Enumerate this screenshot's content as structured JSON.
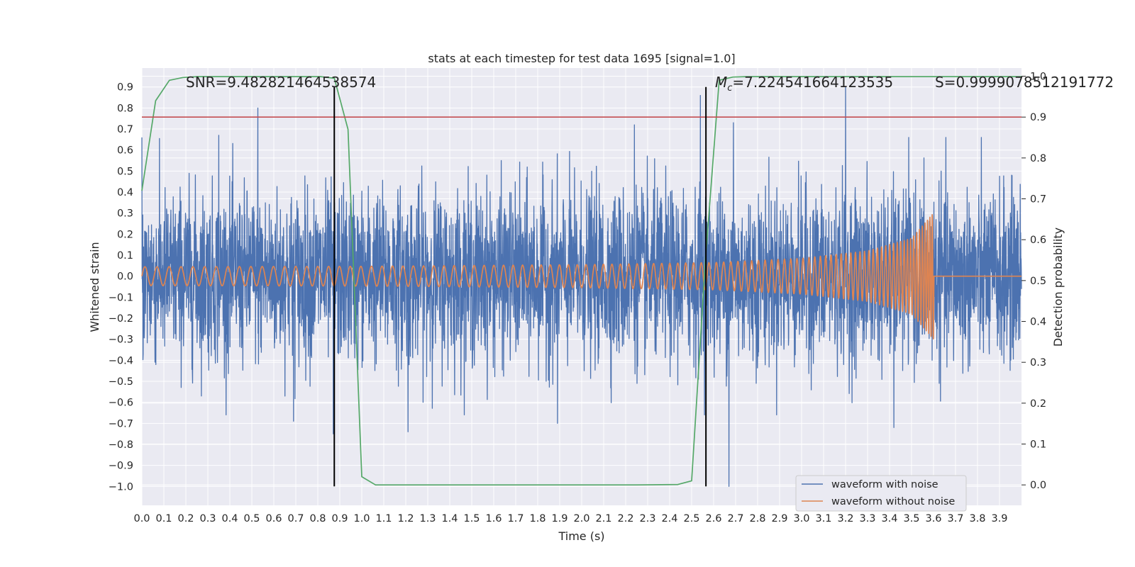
{
  "chart_data": {
    "type": "line",
    "title": "stats at each timestep for test data 1695 [signal=1.0]",
    "xlabel": "Time (s)",
    "ylabel_left": "Whitened strain",
    "ylabel_right": "Detection probability",
    "xlim": [
      0.0,
      4.0
    ],
    "ylim_left": [
      -1.09,
      0.99
    ],
    "ylim_right": [
      -0.05,
      1.02
    ],
    "x_ticks": [
      "0.0",
      "0.1",
      "0.2",
      "0.3",
      "0.4",
      "0.5",
      "0.6",
      "0.7",
      "0.8",
      "0.9",
      "1.0",
      "1.1",
      "1.2",
      "1.3",
      "1.4",
      "1.5",
      "1.6",
      "1.7",
      "1.8",
      "1.9",
      "2.0",
      "2.1",
      "2.2",
      "2.3",
      "2.4",
      "2.5",
      "2.6",
      "2.7",
      "2.8",
      "2.9",
      "3.0",
      "3.1",
      "3.2",
      "3.3",
      "3.4",
      "3.5",
      "3.6",
      "3.7",
      "3.8",
      "3.9"
    ],
    "y_ticks_left": [
      "0.9",
      "0.8",
      "0.7",
      "0.6",
      "0.5",
      "0.4",
      "0.3",
      "0.2",
      "0.1",
      "0.0",
      "-0.1",
      "-0.2",
      "-0.3",
      "-0.4",
      "-0.5",
      "-0.6",
      "-0.7",
      "-0.8",
      "-0.9",
      "-1.0"
    ],
    "y_ticks_right": [
      "1.0",
      "0.9",
      "0.8",
      "0.7",
      "0.6",
      "0.5",
      "0.4",
      "0.3",
      "0.2",
      "0.1",
      "0.0"
    ],
    "grid": true,
    "annotations": {
      "snr": "SNR=9.482821464538574",
      "mc": "=7.224541664123535",
      "mc_symbol": "M",
      "mc_sub": "c",
      "s": "S=0.9999078512191772"
    },
    "vlines_x": [
      0.875,
      2.565
    ],
    "threshold_right": 0.9,
    "series": [
      {
        "name": "waveform with noise",
        "color": "#4c72b0",
        "axis": "left",
        "kind": "noise",
        "std": 0.2,
        "x_range": [
          0.0,
          4.0
        ],
        "peaks": [
          [
            0.527,
            0.8
          ],
          [
            0.87,
            -0.75
          ],
          [
            1.21,
            -0.74
          ],
          [
            1.89,
            -0.7
          ],
          [
            2.24,
            0.72
          ],
          [
            2.54,
            0.86
          ],
          [
            2.67,
            -1.0
          ],
          [
            2.69,
            0.73
          ],
          [
            3.2,
            0.9
          ],
          [
            3.42,
            -0.72
          ],
          [
            0.69,
            -0.69
          ],
          [
            0.35,
            0.67
          ]
        ]
      },
      {
        "name": "waveform without noise",
        "color": "#dd8452",
        "axis": "left",
        "kind": "chirp",
        "x_range": [
          0.0,
          3.6
        ],
        "merger_t": 3.6,
        "envelope": [
          [
            0.0,
            0.045
          ],
          [
            1.0,
            0.047
          ],
          [
            2.0,
            0.055
          ],
          [
            2.6,
            0.065
          ],
          [
            3.0,
            0.085
          ],
          [
            3.3,
            0.12
          ],
          [
            3.5,
            0.18
          ],
          [
            3.6,
            0.3
          ]
        ],
        "freq_hz": [
          [
            0.0,
            18
          ],
          [
            1.5,
            22
          ],
          [
            2.5,
            28
          ],
          [
            3.0,
            36
          ],
          [
            3.4,
            55
          ],
          [
            3.55,
            80
          ],
          [
            3.6,
            100
          ]
        ]
      },
      {
        "name": "detection probability",
        "color": "#55a868",
        "axis": "right",
        "kind": "line",
        "x": [
          0.0,
          0.0625,
          0.125,
          0.1875,
          0.25,
          0.3125,
          0.375,
          0.4375,
          0.5,
          0.5625,
          0.625,
          0.6875,
          0.75,
          0.8125,
          0.875,
          0.9375,
          1.0,
          1.0625,
          1.125,
          1.1875,
          1.25,
          1.5,
          2.0,
          2.25,
          2.4375,
          2.5,
          2.5625,
          2.625,
          2.6875,
          2.75,
          3.0,
          3.5,
          4.0
        ],
        "values": [
          0.72,
          0.94,
          0.99,
          0.997,
          0.999,
          0.999,
          0.999,
          0.999,
          0.999,
          0.999,
          0.999,
          0.999,
          0.999,
          0.999,
          0.995,
          0.87,
          0.02,
          0.0,
          0.0,
          0.0,
          0.0,
          0.0,
          0.0,
          0.0,
          0.001,
          0.01,
          0.55,
          0.99,
          0.998,
          0.999,
          0.999,
          0.999,
          0.999
        ]
      }
    ],
    "legend": [
      "waveform with noise",
      "waveform without noise"
    ],
    "legend_position": "lower-right"
  }
}
